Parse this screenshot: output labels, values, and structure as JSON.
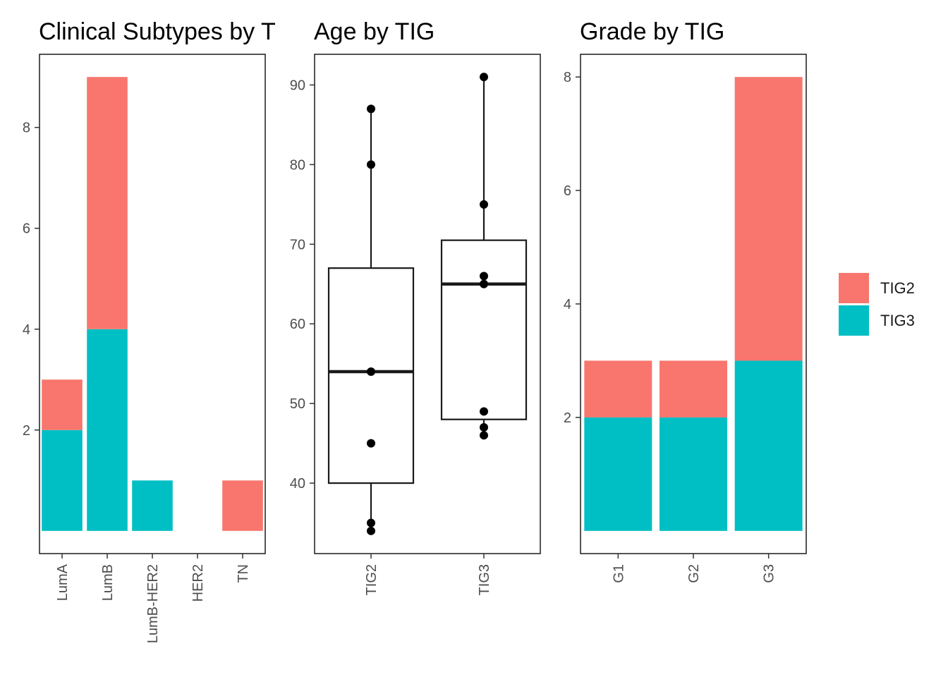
{
  "colors": {
    "TIG2": "#F8766D",
    "TIG3": "#00BFC4",
    "frame": "#1a1a1a",
    "tick_text": "#4d4d4d"
  },
  "legend": {
    "items": [
      "TIG2",
      "TIG3"
    ]
  },
  "chart_data": [
    {
      "type": "bar",
      "stacked": true,
      "title": "Clinical Subtypes by TIG",
      "title_visible": "Clinical Subtypes by T",
      "categories": [
        "LumA",
        "LumB",
        "LumB-HER2",
        "HER2",
        "TN"
      ],
      "series": [
        {
          "name": "TIG2",
          "values": [
            1,
            5,
            0,
            0,
            1
          ]
        },
        {
          "name": "TIG3",
          "values": [
            2,
            4,
            1,
            0,
            0
          ]
        }
      ],
      "yticks": [
        2,
        4,
        6,
        8
      ],
      "ylim": [
        -0.45,
        9.45
      ],
      "grid": false
    },
    {
      "type": "boxplot",
      "title": "Age by TIG",
      "categories": [
        "TIG2",
        "TIG3"
      ],
      "boxes": [
        {
          "group": "TIG2",
          "q1": 40,
          "median": 54,
          "q3": 67,
          "whisker_low": 34,
          "whisker_high": 87
        },
        {
          "group": "TIG3",
          "q1": 48,
          "median": 65,
          "q3": 70.5,
          "whisker_low": 46,
          "whisker_high": 91
        }
      ],
      "points": [
        {
          "group": "TIG2",
          "values": [
            87,
            80,
            54,
            45,
            35,
            34
          ]
        },
        {
          "group": "TIG3",
          "values": [
            91,
            75,
            66,
            65,
            49,
            47,
            46
          ]
        }
      ],
      "yticks": [
        40,
        50,
        60,
        70,
        80,
        90
      ],
      "ylim": [
        31.15,
        93.85
      ],
      "grid": false
    },
    {
      "type": "bar",
      "stacked": true,
      "title": "Grade by TIG",
      "categories": [
        "G1",
        "G2",
        "G3"
      ],
      "series": [
        {
          "name": "TIG2",
          "values": [
            1,
            1,
            5
          ]
        },
        {
          "name": "TIG3",
          "values": [
            2,
            2,
            3
          ]
        }
      ],
      "yticks": [
        2,
        4,
        6,
        8
      ],
      "ylim": [
        -0.4,
        8.4
      ],
      "grid": false
    }
  ]
}
